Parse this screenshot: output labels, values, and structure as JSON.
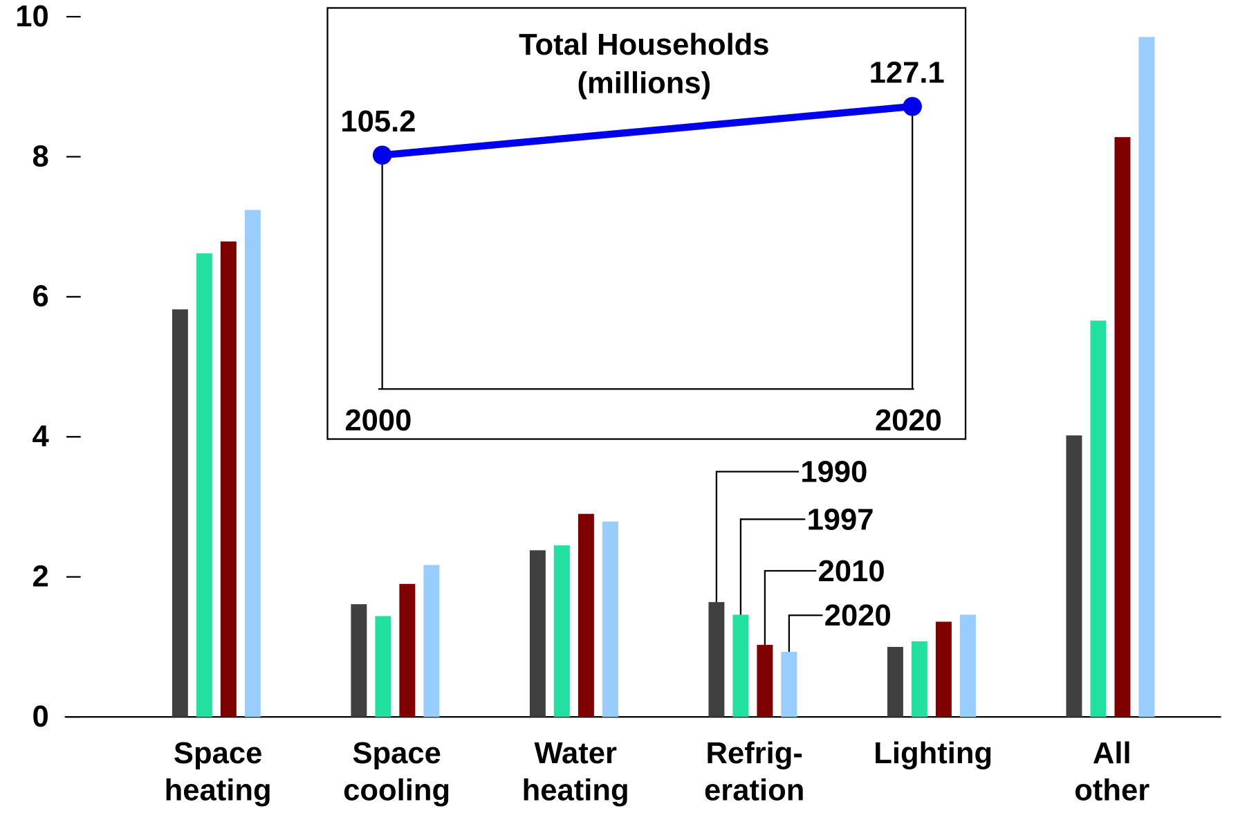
{
  "chart_data": [
    {
      "type": "bar",
      "categories": [
        [
          "Space",
          "heating"
        ],
        [
          "Space",
          "cooling"
        ],
        [
          "Water",
          "heating"
        ],
        [
          "Refrig-",
          "eration"
        ],
        [
          "Lighting"
        ],
        [
          "All",
          "other"
        ]
      ],
      "series": [
        {
          "name": "1990",
          "color": "#404040",
          "values": [
            5.82,
            1.61,
            2.38,
            1.64,
            1.0,
            4.02
          ]
        },
        {
          "name": "1997",
          "color": "#22e0a0",
          "values": [
            6.62,
            1.44,
            2.45,
            1.46,
            1.08,
            5.66
          ]
        },
        {
          "name": "2010",
          "color": "#800000",
          "values": [
            6.79,
            1.9,
            2.9,
            1.03,
            1.36,
            8.28
          ]
        },
        {
          "name": "2020",
          "color": "#99ccff",
          "values": [
            7.24,
            2.17,
            2.79,
            0.93,
            1.46,
            9.71
          ]
        }
      ],
      "ylim": [
        0,
        10
      ],
      "yticks": [
        0,
        2,
        4,
        6,
        8,
        10
      ]
    },
    {
      "type": "line",
      "title": [
        "Total Households",
        "(millions)"
      ],
      "x": [
        2000,
        2020
      ],
      "xlim": [
        2000,
        2020
      ],
      "xticks": [
        2000,
        2020
      ],
      "series": [
        {
          "color": "#0000ee",
          "values": [
            105.2,
            127.1
          ]
        }
      ],
      "ylim": [
        0,
        150
      ]
    }
  ]
}
